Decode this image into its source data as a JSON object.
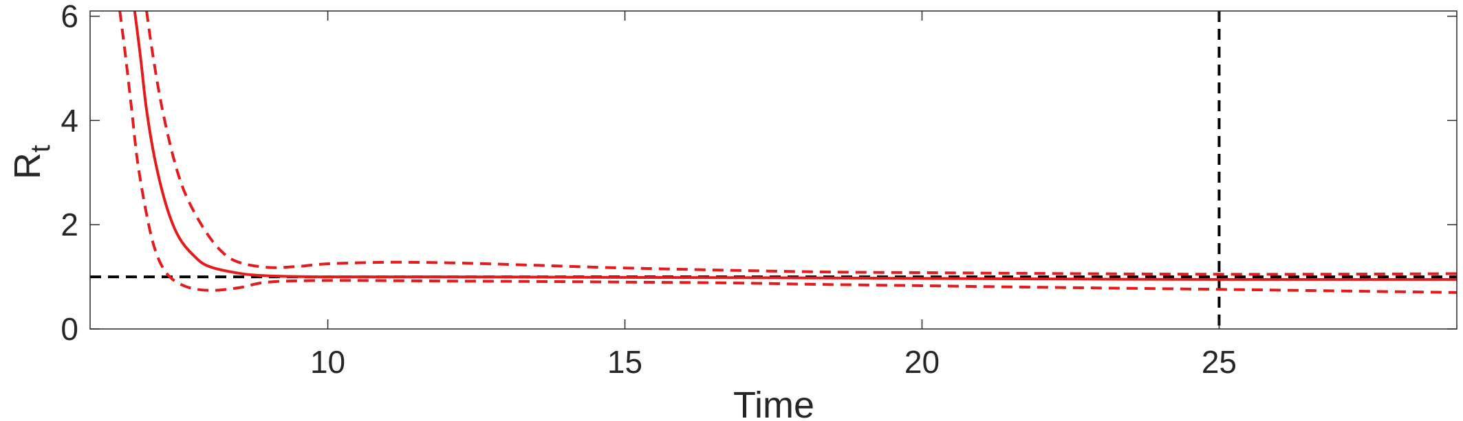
{
  "chart_data": {
    "type": "line",
    "title": "",
    "xlabel": "Time",
    "ylabel": {
      "main": "R",
      "subscript": "t"
    },
    "xlim": [
      6,
      29
    ],
    "ylim": [
      0,
      6.1
    ],
    "xticks": [
      10,
      15,
      20,
      25
    ],
    "yticks": [
      0,
      2,
      4,
      6
    ],
    "grid": false,
    "legend": "none",
    "reference_lines": [
      {
        "orientation": "horizontal",
        "value": 1,
        "style": "dashed",
        "color": "#000000"
      },
      {
        "orientation": "vertical",
        "value": 25,
        "style": "dashed",
        "color": "#000000"
      }
    ],
    "series": [
      {
        "role": "estimate",
        "style": "solid",
        "color": "#e41a1c",
        "x": [
          6.75,
          6.85,
          6.95,
          7.1,
          7.3,
          7.5,
          7.75,
          8.0,
          8.5,
          9.0,
          10.0,
          12.0,
          15.0,
          18.0,
          20.0,
          22.0,
          25.0,
          27.0,
          29.0
        ],
        "y": [
          6.1,
          5.2,
          4.2,
          3.2,
          2.3,
          1.75,
          1.4,
          1.2,
          1.07,
          1.02,
          1.0,
          1.0,
          0.99,
          0.98,
          0.97,
          0.96,
          0.95,
          0.95,
          0.95
        ]
      },
      {
        "role": "upper bound",
        "style": "dashed",
        "color": "#e41a1c",
        "x": [
          6.95,
          7.05,
          7.2,
          7.4,
          7.6,
          7.9,
          8.2,
          8.5,
          9.0,
          9.5,
          10.0,
          11.0,
          12.0,
          13.0,
          15.0,
          18.0,
          20.0,
          25.0,
          29.0
        ],
        "y": [
          6.1,
          5.3,
          4.3,
          3.3,
          2.6,
          1.95,
          1.5,
          1.28,
          1.18,
          1.2,
          1.25,
          1.28,
          1.27,
          1.24,
          1.17,
          1.1,
          1.08,
          1.05,
          1.06
        ]
      },
      {
        "role": "lower bound",
        "style": "dashed",
        "color": "#e41a1c",
        "x": [
          6.5,
          6.6,
          6.7,
          6.8,
          6.95,
          7.1,
          7.3,
          7.6,
          8.0,
          8.5,
          9.0,
          10.0,
          12.0,
          15.0,
          17.0,
          18.0,
          20.0,
          22.0,
          25.0,
          27.0,
          29.0
        ],
        "y": [
          6.1,
          5.2,
          4.2,
          3.2,
          2.2,
          1.5,
          1.05,
          0.82,
          0.74,
          0.79,
          0.9,
          0.93,
          0.92,
          0.9,
          0.88,
          0.86,
          0.83,
          0.8,
          0.76,
          0.73,
          0.7
        ]
      }
    ]
  }
}
